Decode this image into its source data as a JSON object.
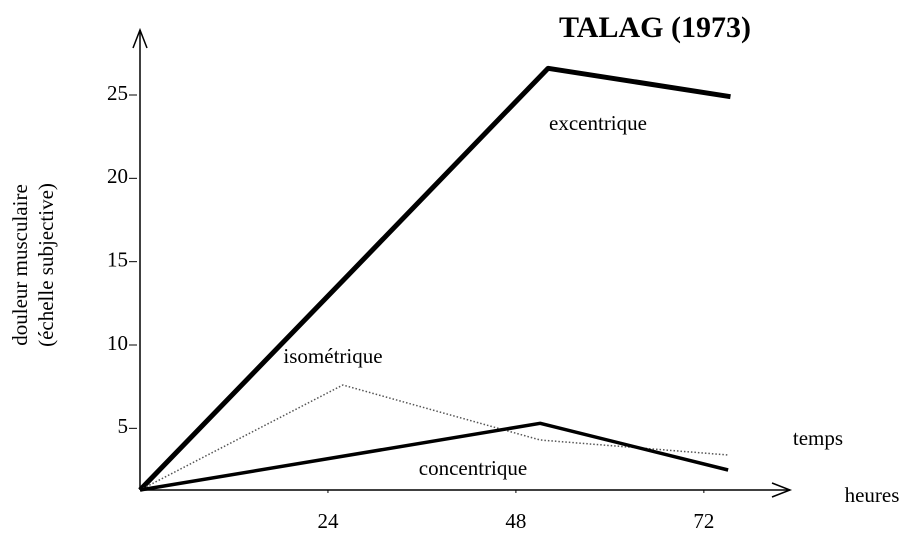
{
  "chart_data": {
    "type": "line",
    "title": "TALAG (1973)",
    "ylabel": [
      "douleur musculaire",
      "(échelle subjective)"
    ],
    "xlabel": [
      "temps",
      "heures"
    ],
    "xlim": [
      0,
      83
    ],
    "ylim": [
      1.3,
      28.9
    ],
    "xticks": [
      24,
      48,
      72
    ],
    "yticks": [
      5,
      10,
      15,
      20,
      25
    ],
    "series": [
      {
        "name": "excentrique",
        "color": "#000000",
        "style": "solid",
        "width": 5,
        "x": [
          0,
          26.6,
          52.1,
          75.4
        ],
        "values": [
          1.3,
          14.2,
          26.6,
          24.9
        ]
      },
      {
        "name": "isométrique",
        "color": "#555555",
        "style": "dotted",
        "width": 1.5,
        "x": [
          0,
          25.9,
          51.1,
          75.1
        ],
        "values": [
          1.3,
          7.6,
          4.3,
          3.4
        ]
      },
      {
        "name": "concentrique",
        "color": "#000000",
        "style": "solid",
        "width": 3.5,
        "x": [
          0,
          51.1,
          75.1
        ],
        "values": [
          1.3,
          5.3,
          2.5
        ]
      }
    ]
  }
}
